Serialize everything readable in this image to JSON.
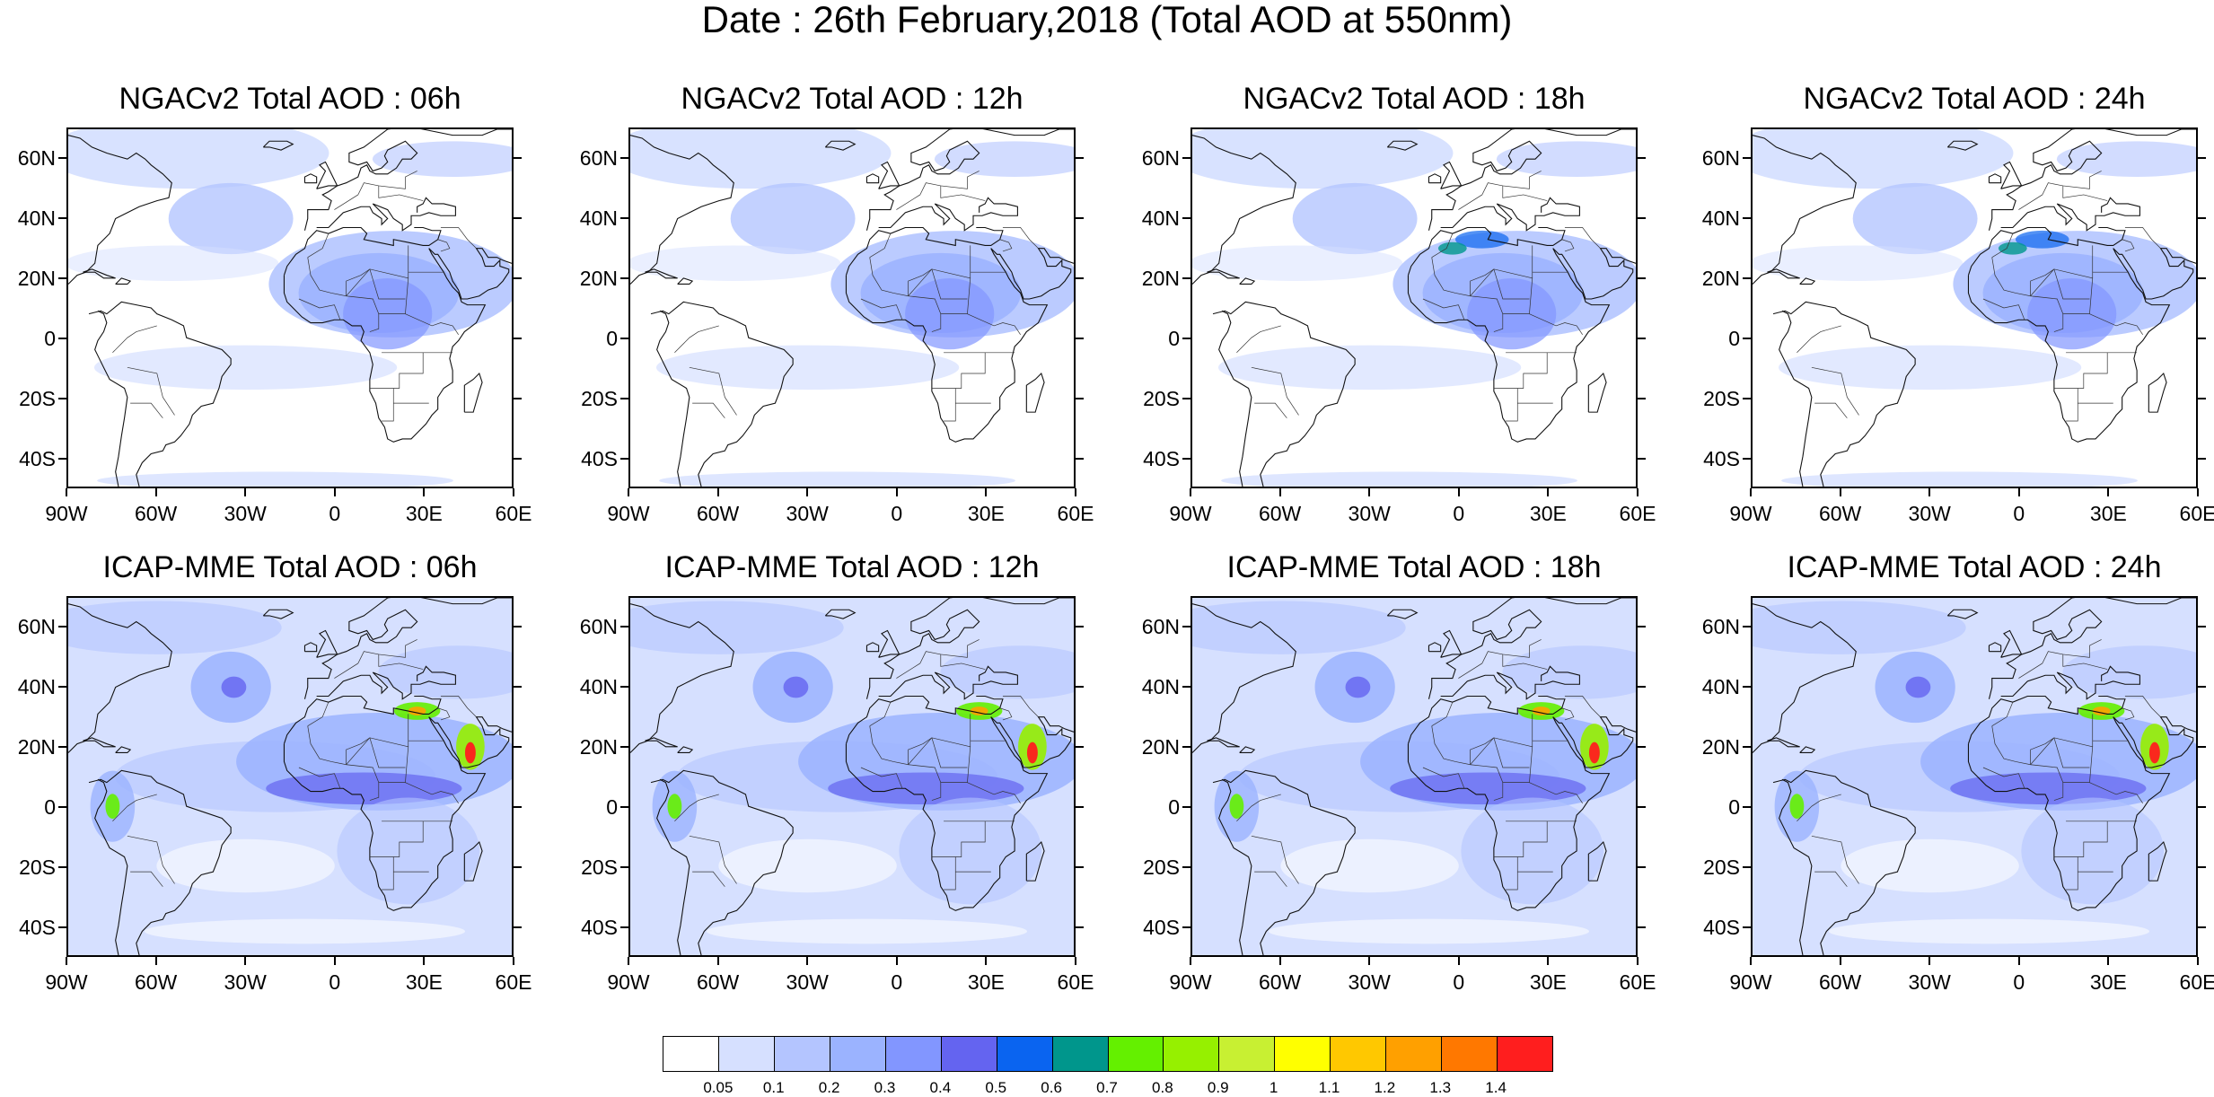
{
  "title": "Date : 26th February,2018 (Total AOD at 550nm)",
  "map_extent": {
    "lon": [
      -90,
      60
    ],
    "lat": [
      -50,
      70
    ]
  },
  "y_ticks": [
    {
      "lat": 60,
      "label": "60N"
    },
    {
      "lat": 40,
      "label": "40N"
    },
    {
      "lat": 20,
      "label": "20N"
    },
    {
      "lat": 0,
      "label": "0"
    },
    {
      "lat": -20,
      "label": "20S"
    },
    {
      "lat": -40,
      "label": "40S"
    }
  ],
  "x_ticks": [
    {
      "lon": -90,
      "label": "90W"
    },
    {
      "lon": -60,
      "label": "60W"
    },
    {
      "lon": -30,
      "label": "30W"
    },
    {
      "lon": 0,
      "label": "0"
    },
    {
      "lon": 30,
      "label": "30E"
    },
    {
      "lon": 60,
      "label": "60E"
    }
  ],
  "panels": [
    {
      "title": "NGACv2 Total AOD : 06h",
      "model": "NGACv2",
      "hour": "06h"
    },
    {
      "title": "NGACv2 Total AOD : 12h",
      "model": "NGACv2",
      "hour": "12h"
    },
    {
      "title": "NGACv2 Total AOD : 18h",
      "model": "NGACv2",
      "hour": "18h"
    },
    {
      "title": "NGACv2 Total AOD : 24h",
      "model": "NGACv2",
      "hour": "24h"
    },
    {
      "title": "ICAP-MME Total AOD : 06h",
      "model": "ICAP-MME",
      "hour": "06h"
    },
    {
      "title": "ICAP-MME Total AOD : 12h",
      "model": "ICAP-MME",
      "hour": "12h"
    },
    {
      "title": "ICAP-MME Total AOD : 18h",
      "model": "ICAP-MME",
      "hour": "18h"
    },
    {
      "title": "ICAP-MME Total AOD : 24h",
      "model": "ICAP-MME",
      "hour": "24h"
    }
  ],
  "colorbar": {
    "colors": [
      "#ffffff",
      "#d6e0ff",
      "#b4c5ff",
      "#9bb3ff",
      "#8296ff",
      "#6464f0",
      "#0a64f0",
      "#00968c",
      "#64f000",
      "#96f000",
      "#c8f032",
      "#ffff00",
      "#ffc800",
      "#ffa000",
      "#ff7800",
      "#ff1e1e"
    ],
    "labels": [
      "0.05",
      "0.1",
      "0.2",
      "0.3",
      "0.4",
      "0.5",
      "0.6",
      "0.7",
      "0.8",
      "0.9",
      "1",
      "1.1",
      "1.2",
      "1.3",
      "1.4"
    ]
  }
}
